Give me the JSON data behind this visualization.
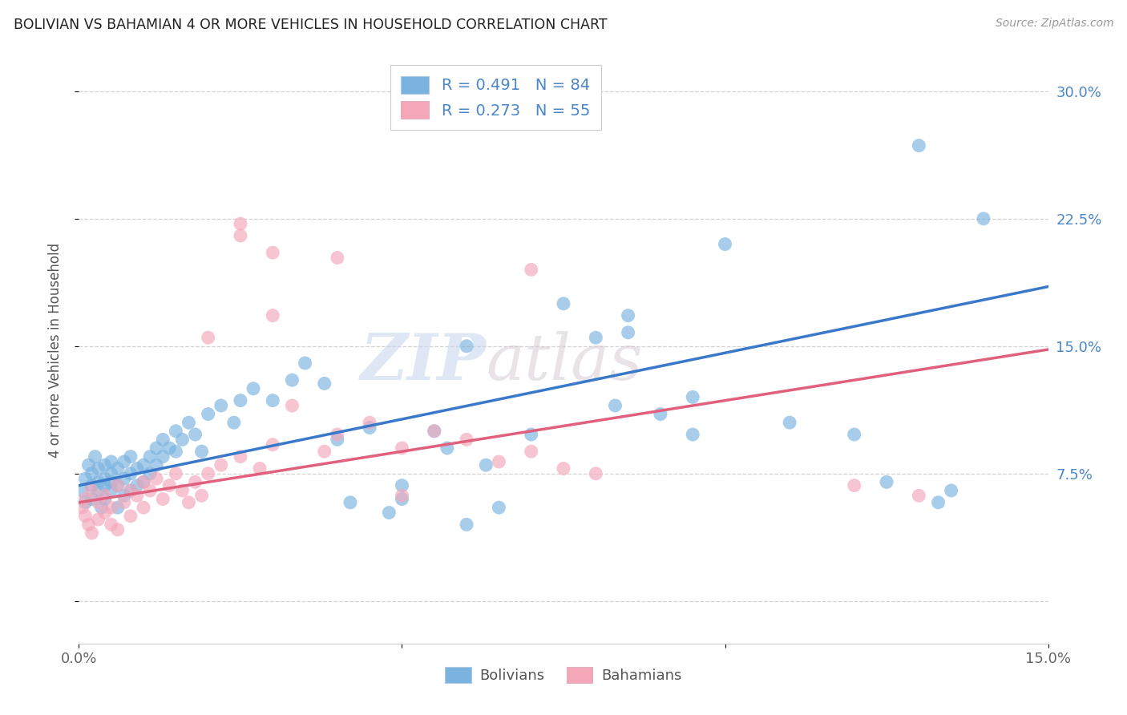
{
  "title": "BOLIVIAN VS BAHAMIAN 4 OR MORE VEHICLES IN HOUSEHOLD CORRELATION CHART",
  "source": "Source: ZipAtlas.com",
  "ylabel": "4 or more Vehicles in Household",
  "xlim": [
    0.0,
    0.15
  ],
  "ylim": [
    -0.025,
    0.32
  ],
  "bolivian_color": "#7ab3e0",
  "bahamian_color": "#f4a7b9",
  "bolivian_line_color": "#3a78c9",
  "bahamian_line_color": "#e0607e",
  "R_bolivian": 0.491,
  "N_bolivian": 84,
  "R_bahamian": 0.273,
  "N_bahamian": 55,
  "watermark_zip": "ZIP",
  "watermark_atlas": "atlas",
  "legend_bolivians": "Bolivians",
  "legend_bahamians": "Bahamians",
  "ytick_positions": [
    0.0,
    0.075,
    0.15,
    0.225,
    0.3
  ],
  "ytick_labels": [
    "",
    "7.5%",
    "15.0%",
    "22.5%",
    "30.0%"
  ],
  "xtick_positions": [
    0.0,
    0.05,
    0.1,
    0.15
  ],
  "xtick_labels": [
    "0.0%",
    "",
    "",
    "15.0%"
  ],
  "blue_line_x0": 0.0,
  "blue_line_y0": 0.068,
  "blue_line_x1": 0.15,
  "blue_line_y1": 0.185,
  "pink_line_x0": 0.0,
  "pink_line_y0": 0.058,
  "pink_line_x1": 0.15,
  "pink_line_y1": 0.148,
  "bolivian_x": [
    0.0005,
    0.001,
    0.001,
    0.0015,
    0.002,
    0.002,
    0.002,
    0.0025,
    0.003,
    0.003,
    0.003,
    0.0035,
    0.004,
    0.004,
    0.004,
    0.004,
    0.005,
    0.005,
    0.005,
    0.005,
    0.006,
    0.006,
    0.006,
    0.007,
    0.007,
    0.007,
    0.008,
    0.008,
    0.008,
    0.009,
    0.009,
    0.01,
    0.01,
    0.011,
    0.011,
    0.012,
    0.012,
    0.013,
    0.013,
    0.014,
    0.015,
    0.015,
    0.016,
    0.017,
    0.018,
    0.019,
    0.02,
    0.022,
    0.024,
    0.025,
    0.027,
    0.03,
    0.033,
    0.035,
    0.038,
    0.04,
    0.042,
    0.045,
    0.048,
    0.05,
    0.055,
    0.057,
    0.06,
    0.063,
    0.065,
    0.07,
    0.075,
    0.08,
    0.083,
    0.085,
    0.09,
    0.095,
    0.1,
    0.11,
    0.12,
    0.125,
    0.13,
    0.133,
    0.135,
    0.14,
    0.085,
    0.095,
    0.05,
    0.06
  ],
  "bolivian_y": [
    0.065,
    0.072,
    0.058,
    0.08,
    0.068,
    0.075,
    0.06,
    0.085,
    0.07,
    0.065,
    0.078,
    0.055,
    0.072,
    0.08,
    0.068,
    0.06,
    0.075,
    0.065,
    0.07,
    0.082,
    0.078,
    0.068,
    0.055,
    0.082,
    0.072,
    0.062,
    0.085,
    0.075,
    0.065,
    0.078,
    0.068,
    0.08,
    0.07,
    0.085,
    0.075,
    0.09,
    0.08,
    0.095,
    0.085,
    0.09,
    0.1,
    0.088,
    0.095,
    0.105,
    0.098,
    0.088,
    0.11,
    0.115,
    0.105,
    0.118,
    0.125,
    0.118,
    0.13,
    0.14,
    0.128,
    0.095,
    0.058,
    0.102,
    0.052,
    0.06,
    0.1,
    0.09,
    0.15,
    0.08,
    0.055,
    0.098,
    0.175,
    0.155,
    0.115,
    0.168,
    0.11,
    0.098,
    0.21,
    0.105,
    0.098,
    0.07,
    0.268,
    0.058,
    0.065,
    0.225,
    0.158,
    0.12,
    0.068,
    0.045
  ],
  "bahamian_x": [
    0.0005,
    0.001,
    0.001,
    0.0015,
    0.002,
    0.002,
    0.003,
    0.003,
    0.004,
    0.004,
    0.005,
    0.005,
    0.006,
    0.006,
    0.007,
    0.008,
    0.008,
    0.009,
    0.01,
    0.01,
    0.011,
    0.012,
    0.013,
    0.014,
    0.015,
    0.016,
    0.017,
    0.018,
    0.019,
    0.02,
    0.022,
    0.025,
    0.028,
    0.03,
    0.033,
    0.038,
    0.04,
    0.045,
    0.05,
    0.055,
    0.06,
    0.065,
    0.07,
    0.075,
    0.08,
    0.03,
    0.04,
    0.05,
    0.025,
    0.12,
    0.02,
    0.025,
    0.03,
    0.07,
    0.13
  ],
  "bahamian_y": [
    0.055,
    0.05,
    0.06,
    0.045,
    0.065,
    0.04,
    0.058,
    0.048,
    0.062,
    0.052,
    0.055,
    0.045,
    0.068,
    0.042,
    0.058,
    0.065,
    0.05,
    0.062,
    0.07,
    0.055,
    0.065,
    0.072,
    0.06,
    0.068,
    0.075,
    0.065,
    0.058,
    0.07,
    0.062,
    0.075,
    0.08,
    0.085,
    0.078,
    0.092,
    0.115,
    0.088,
    0.098,
    0.105,
    0.09,
    0.1,
    0.095,
    0.082,
    0.088,
    0.078,
    0.075,
    0.168,
    0.202,
    0.062,
    0.222,
    0.068,
    0.155,
    0.215,
    0.205,
    0.195,
    0.062
  ]
}
